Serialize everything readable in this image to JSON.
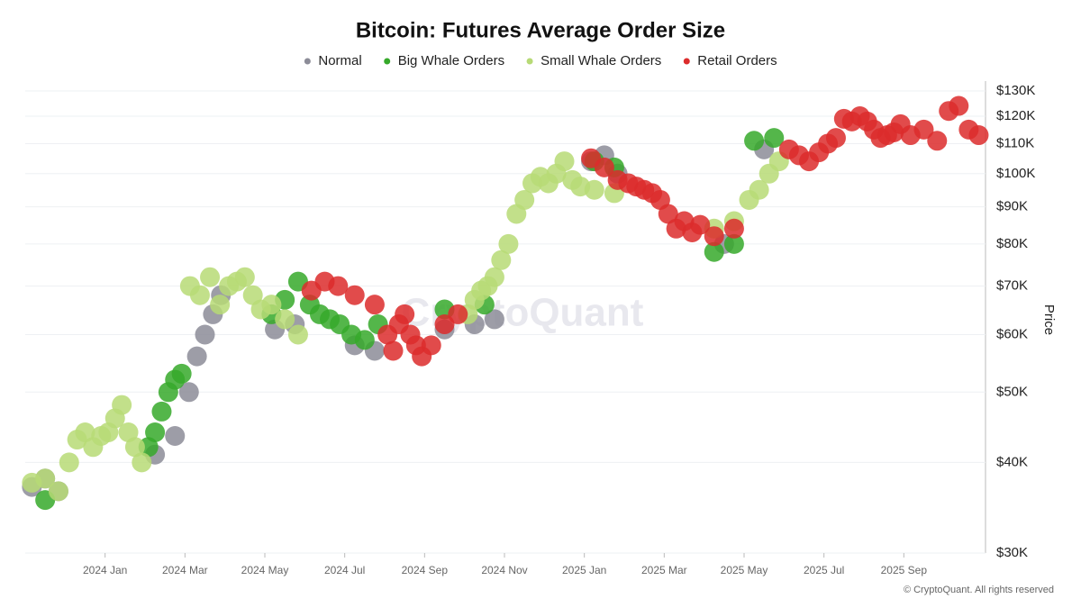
{
  "chart_data": {
    "type": "scatter",
    "title": "Bitcoin: Futures Average Order Size",
    "y_label": "Price",
    "watermark": "CryptoQuant",
    "footer": "© CryptoQuant. All rights reserved",
    "log_y": true,
    "grid": true,
    "legend": "top",
    "xlim": [
      "2023 Nov",
      "2025 Oct"
    ],
    "ylim": [
      30000,
      130000
    ],
    "xticks": [
      "2024 Jan",
      "2024 Mar",
      "2024 May",
      "2024 Jul",
      "2024 Sep",
      "2024 Nov",
      "2025 Jan",
      "2025 Mar",
      "2025 May",
      "2025 Jul",
      "2025 Sep"
    ],
    "yticks": [
      {
        "value": 30000,
        "label": "$30K"
      },
      {
        "value": 40000,
        "label": "$40K"
      },
      {
        "value": 50000,
        "label": "$50K"
      },
      {
        "value": 60000,
        "label": "$60K"
      },
      {
        "value": 70000,
        "label": "$70K"
      },
      {
        "value": 80000,
        "label": "$80K"
      },
      {
        "value": 90000,
        "label": "$90K"
      },
      {
        "value": 100000,
        "label": "$100K"
      },
      {
        "value": 110000,
        "label": "$110K"
      },
      {
        "value": 120000,
        "label": "$120K"
      },
      {
        "value": 130000,
        "label": "$130K"
      }
    ],
    "series": [
      {
        "name": "Normal",
        "color": "#8c8c98",
        "x": [
          "2023 Nov",
          "2023 Nov",
          "2023 Nov",
          "2024 Feb",
          "2024 Feb",
          "2024 Mar",
          "2024 Mar",
          "2024 Mar",
          "2024 Mar",
          "2024 Mar",
          "2024 May",
          "2024 May",
          "2024 Jul",
          "2024 Jul",
          "2024 Sep",
          "2024 Oct",
          "2024 Oct",
          "2025 Jan",
          "2025 Jan",
          "2025 Jan",
          "2025 Apr",
          "2025 May"
        ],
        "values": [
          37000,
          38000,
          36500,
          41000,
          43500,
          50000,
          56000,
          60000,
          64000,
          68000,
          61000,
          62000,
          58000,
          57000,
          61000,
          62000,
          63000,
          104000,
          106000,
          100000,
          80000,
          108000
        ]
      },
      {
        "name": "Big Whale Orders",
        "color": "#36a92a",
        "x": [
          "2023 Nov",
          "2024 Feb",
          "2024 Feb",
          "2024 Feb",
          "2024 Feb",
          "2024 Feb",
          "2024 Feb",
          "2024 May",
          "2024 May",
          "2024 May",
          "2024 Jun",
          "2024 Jun",
          "2024 Jun",
          "2024 Jun",
          "2024 Jul",
          "2024 Jul",
          "2024 Jul",
          "2024 Sep",
          "2024 Oct",
          "2025 Jan",
          "2025 Jan",
          "2025 Apr",
          "2025 Apr",
          "2025 May",
          "2025 May"
        ],
        "values": [
          35500,
          42000,
          44000,
          47000,
          50000,
          52000,
          53000,
          64000,
          67000,
          71000,
          66000,
          64000,
          63000,
          62000,
          60000,
          59000,
          62000,
          65000,
          66000,
          104000,
          102000,
          78000,
          80000,
          111000,
          112000
        ]
      },
      {
        "name": "Small Whale Orders",
        "color": "#b7da76",
        "x": [
          "2023 Nov",
          "2023 Nov",
          "2023 Nov",
          "2023 Dec",
          "2023 Dec",
          "2023 Dec",
          "2023 Dec",
          "2023 Dec",
          "2024 Jan",
          "2024 Jan",
          "2024 Jan",
          "2024 Jan",
          "2024 Jan",
          "2024 Jan",
          "2024 Mar",
          "2024 Mar",
          "2024 Mar",
          "2024 Mar",
          "2024 Apr",
          "2024 Apr",
          "2024 Apr",
          "2024 Apr",
          "2024 Apr",
          "2024 May",
          "2024 May",
          "2024 May",
          "2024 Oct",
          "2024 Oct",
          "2024 Oct",
          "2024 Oct",
          "2024 Oct",
          "2024 Oct",
          "2024 Nov",
          "2024 Nov",
          "2024 Nov",
          "2024 Nov",
          "2024 Nov",
          "2024 Dec",
          "2024 Dec",
          "2024 Dec",
          "2024 Dec",
          "2024 Dec",
          "2025 Jan",
          "2025 Jan",
          "2025 Apr",
          "2025 Apr",
          "2025 May",
          "2025 May",
          "2025 May",
          "2025 May"
        ],
        "values": [
          37500,
          38000,
          36500,
          40000,
          43000,
          44000,
          42000,
          43500,
          44000,
          46000,
          48000,
          44000,
          42000,
          40000,
          70000,
          68000,
          72000,
          66000,
          70000,
          71000,
          72000,
          68000,
          65000,
          66000,
          63000,
          60000,
          64000,
          67000,
          69000,
          70000,
          72000,
          76000,
          80000,
          88000,
          92000,
          97000,
          99000,
          97000,
          100000,
          104000,
          98000,
          96000,
          95000,
          94000,
          84000,
          86000,
          92000,
          95000,
          100000,
          104000
        ]
      },
      {
        "name": "Retail Orders",
        "color": "#dc2c2c",
        "x": [
          "2024 Jun",
          "2024 Jun",
          "2024 Jun",
          "2024 Jul",
          "2024 Jul",
          "2024 Aug",
          "2024 Aug",
          "2024 Aug",
          "2024 Aug",
          "2024 Aug",
          "2024 Aug",
          "2024 Aug",
          "2024 Sep",
          "2024 Sep",
          "2024 Sep",
          "2025 Jan",
          "2025 Jan",
          "2025 Jan",
          "2025 Feb",
          "2025 Feb",
          "2025 Feb",
          "2025 Feb",
          "2025 Feb",
          "2025 Mar",
          "2025 Mar",
          "2025 Mar",
          "2025 Mar",
          "2025 Mar",
          "2025 Apr",
          "2025 Apr",
          "2025 Jun",
          "2025 Jun",
          "2025 Jun",
          "2025 Jun",
          "2025 Jul",
          "2025 Jul",
          "2025 Jul",
          "2025 Jul",
          "2025 Jul",
          "2025 Aug",
          "2025 Aug",
          "2025 Aug",
          "2025 Aug",
          "2025 Aug",
          "2025 Aug",
          "2025 Sep",
          "2025 Sep",
          "2025 Sep",
          "2025 Oct",
          "2025 Oct",
          "2025 Oct",
          "2025 Oct"
        ],
        "values": [
          69000,
          71000,
          70000,
          68000,
          66000,
          60000,
          57000,
          62000,
          64000,
          60000,
          58000,
          56000,
          58000,
          62000,
          64000,
          105000,
          102000,
          98000,
          97000,
          96000,
          95000,
          94000,
          92000,
          88000,
          84000,
          86000,
          83000,
          85000,
          82000,
          84000,
          108000,
          106000,
          104000,
          107000,
          110000,
          112000,
          119000,
          118000,
          120000,
          118000,
          115000,
          112000,
          113000,
          114000,
          117000,
          113000,
          115000,
          111000,
          122000,
          124000,
          115000,
          113000
        ]
      }
    ]
  }
}
